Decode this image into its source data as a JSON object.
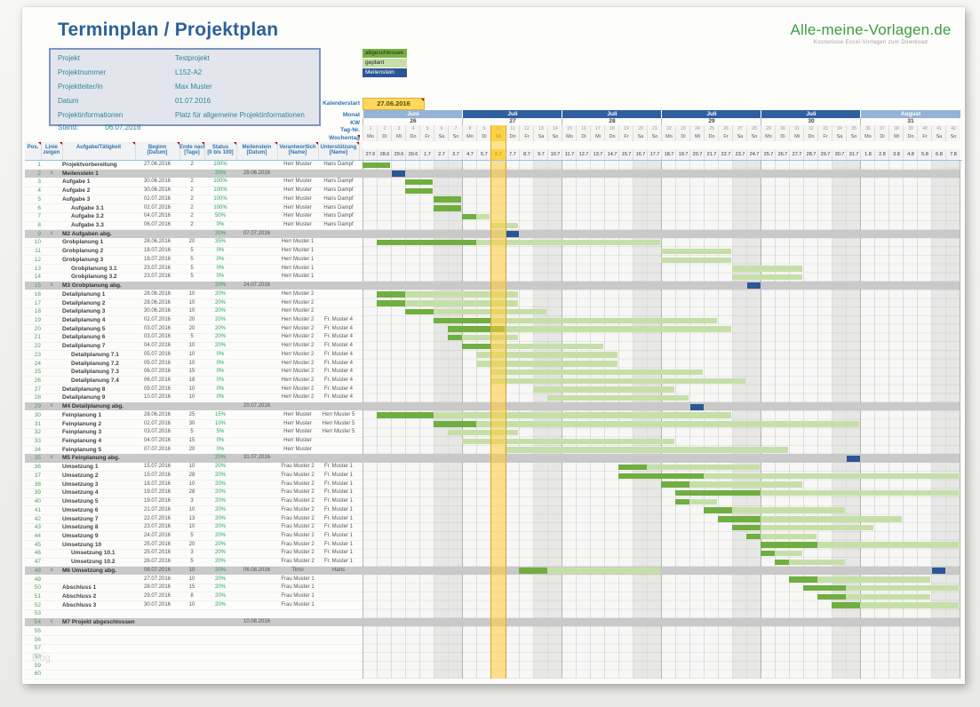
{
  "page": {
    "title": "Terminplan / Projektplan",
    "stand_label": "Stand:",
    "stand_value": "06.07.2016",
    "watermark": "blog"
  },
  "logo": {
    "name": "Alle-meine-Vorlagen.de",
    "tagline": "Kostenlose Excel-Vorlagen zum Download"
  },
  "info_box": {
    "rows": [
      {
        "label": "Projekt",
        "value": "Testprojekt"
      },
      {
        "label": "Projektnummer",
        "value": "L152-A2"
      },
      {
        "label": "Projektleiter/in",
        "value": "Max Muster"
      },
      {
        "label": "Datum",
        "value": "01.07.2016"
      },
      {
        "label": "Projektinformationen",
        "value": "Platz für allgemeine Projektinformationen"
      }
    ]
  },
  "legend": [
    {
      "label": "abgeschlossen",
      "color": "#76b041",
      "text": "#222222"
    },
    {
      "label": "geplant",
      "color": "#c6dfa8",
      "text": "#222222"
    },
    {
      "label": "Meilenstein",
      "color": "#2b5694",
      "text": "#ffffff"
    }
  ],
  "colors": {
    "done_bar": "#6fae3f",
    "planned_bar": "#c6dfa8",
    "milestone": "#2b5694",
    "today_fill": "rgba(253,205,55,0.55)",
    "today_border": "#dda535",
    "today_cell": "#fcd44f",
    "weekend": "#e7e7e5",
    "weekday": "#f7f7f6",
    "band_gray": "#c9c9c9",
    "month_juni": "#95b3d7",
    "month_juli": "#2f5f9e",
    "month_august": "#95b3d7"
  },
  "calendar": {
    "start_label": "Kalenderstart",
    "start_value": "27.06.2016",
    "labels": {
      "monat": "Monat",
      "kw": "KW",
      "tag": "Tag-Nr.",
      "wochentag": "Wochentag"
    },
    "months": [
      {
        "label": "Juni",
        "weeks": 1,
        "color_key": "month_juni"
      },
      {
        "label": "Juli",
        "weeks": 1,
        "color_key": "month_juli"
      },
      {
        "label": "Juli",
        "weeks": 1,
        "color_key": "month_juli"
      },
      {
        "label": "Juli",
        "weeks": 1,
        "color_key": "month_juli"
      },
      {
        "label": "Juli",
        "weeks": 1,
        "color_key": "month_juli"
      },
      {
        "label": "August",
        "weeks": 1,
        "color_key": "month_august"
      }
    ],
    "weeks": [
      "26",
      "27",
      "28",
      "29",
      "30",
      "31"
    ],
    "weekdays": [
      "Mo",
      "Di",
      "Mi",
      "Do",
      "Fr",
      "Sa",
      "So"
    ],
    "dates": [
      "27.6",
      "28.6",
      "29.6",
      "30.6",
      "1.7",
      "2.7",
      "3.7",
      "4.7",
      "5.7",
      "6.7",
      "7.7",
      "8.7",
      "9.7",
      "10.7",
      "11.7",
      "12.7",
      "13.7",
      "14.7",
      "15.7",
      "16.7",
      "17.7",
      "18.7",
      "19.7",
      "20.7",
      "21.7",
      "22.7",
      "23.7",
      "24.7",
      "25.7",
      "26.7",
      "27.7",
      "28.7",
      "29.7",
      "30.7",
      "31.7",
      "1.8",
      "2.8",
      "3.8",
      "4.8",
      "5.8",
      "6.8",
      "7.8"
    ],
    "today_day": 10,
    "num_days": 42
  },
  "table": {
    "headers": [
      {
        "l1": "Pos.",
        "l2": ""
      },
      {
        "l1": "Linie",
        "l2": "zeigen"
      },
      {
        "l1": "Aufgabe/Tätigkeit",
        "l2": ""
      },
      {
        "l1": "Beginn",
        "l2": "[Datum]"
      },
      {
        "l1": "Ende nach",
        "l2": "[Tage]"
      },
      {
        "l1": "Status",
        "l2": "[0 bis 100]"
      },
      {
        "l1": "Meilenstein",
        "l2": "[Datum]"
      },
      {
        "l1": "Verantwortlich",
        "l2": "[Name]"
      },
      {
        "l1": "Unterstützung",
        "l2": "[Name]"
      }
    ]
  },
  "rows": [
    {
      "pos": "1",
      "type": "task",
      "name": "Projektvorbereitung",
      "beginn": "27.06.2016",
      "dauer": "2",
      "status": "100%",
      "verantwortlich": "Herr Muster",
      "unterstuetzung": "Hans Dampf"
    },
    {
      "pos": "2",
      "type": "milestone",
      "linie": "x",
      "name": "Meilenstein 1",
      "status": "20%",
      "meilenstein": "29.06.2016"
    },
    {
      "pos": "3",
      "type": "task",
      "name": "Aufgabe 1",
      "beginn": "30.06.2016",
      "dauer": "2",
      "status": "100%",
      "verantwortlich": "Herr Muster",
      "unterstuetzung": "Hans Dampf"
    },
    {
      "pos": "4",
      "type": "task",
      "name": "Aufgabe 2",
      "beginn": "30.06.2016",
      "dauer": "2",
      "status": "100%",
      "verantwortlich": "Herr Muster",
      "unterstuetzung": "Hans Dampf"
    },
    {
      "pos": "5",
      "type": "task",
      "name": "Aufgabe 3",
      "beginn": "02.07.2016",
      "dauer": "2",
      "status": "100%",
      "verantwortlich": "Herr Muster",
      "unterstuetzung": "Hans Dampf"
    },
    {
      "pos": "6",
      "type": "task",
      "indent": 1,
      "name": "Aufgabe 3.1",
      "beginn": "02.07.2016",
      "dauer": "2",
      "status": "100%",
      "verantwortlich": "Herr Muster",
      "unterstuetzung": "Hans Dampf"
    },
    {
      "pos": "7",
      "type": "task",
      "indent": 1,
      "name": "Aufgabe 3.2",
      "beginn": "04.07.2016",
      "dauer": "2",
      "status": "50%",
      "verantwortlich": "Herr Muster",
      "unterstuetzung": "Hans Dampf"
    },
    {
      "pos": "8",
      "type": "task",
      "indent": 1,
      "name": "Aufgabe 3.3",
      "beginn": "06.07.2016",
      "dauer": "2",
      "status": "0%",
      "verantwortlich": "Herr Muster",
      "unterstuetzung": "Hans Dampf"
    },
    {
      "pos": "9",
      "type": "milestone",
      "linie": "x",
      "name": "M2 Aufgaben abg.",
      "status": "20%",
      "meilenstein": "07.07.2016"
    },
    {
      "pos": "10",
      "type": "task",
      "name": "Grobplanung 1",
      "beginn": "28.06.2016",
      "dauer": "20",
      "status": "35%",
      "verantwortlich": "Herr Muster 1"
    },
    {
      "pos": "11",
      "type": "task",
      "name": "Grobplanung 2",
      "beginn": "18.07.2016",
      "dauer": "5",
      "status": "0%",
      "verantwortlich": "Herr Muster 1"
    },
    {
      "pos": "12",
      "type": "task",
      "name": "Grobplanung 3",
      "beginn": "18.07.2016",
      "dauer": "5",
      "status": "0%",
      "verantwortlich": "Herr Muster 1"
    },
    {
      "pos": "13",
      "type": "task",
      "indent": 1,
      "name": "Grobplanung 3.1",
      "beginn": "23.07.2016",
      "dauer": "5",
      "status": "0%",
      "verantwortlich": "Herr Muster 1"
    },
    {
      "pos": "14",
      "type": "task",
      "indent": 1,
      "name": "Grobplanung 3.2",
      "beginn": "23.07.2016",
      "dauer": "5",
      "status": "0%",
      "verantwortlich": "Herr Muster 1"
    },
    {
      "pos": "15",
      "type": "milestone",
      "linie": "x",
      "name": "M3 Grobplanung abg.",
      "status": "20%",
      "meilenstein": "24.07.2016"
    },
    {
      "pos": "16",
      "type": "task",
      "name": "Detailplanung 1",
      "beginn": "28.06.2016",
      "dauer": "10",
      "status": "20%",
      "verantwortlich": "Herr Muster 2"
    },
    {
      "pos": "17",
      "type": "task",
      "name": "Detailplanung 2",
      "beginn": "28.06.2016",
      "dauer": "10",
      "status": "20%",
      "verantwortlich": "Herr Muster 2"
    },
    {
      "pos": "18",
      "type": "task",
      "name": "Detailplanung 3",
      "beginn": "30.06.2016",
      "dauer": "10",
      "status": "20%",
      "verantwortlich": "Herr Muster 2"
    },
    {
      "pos": "19",
      "type": "task",
      "name": "Detailplanung 4",
      "beginn": "02.07.2016",
      "dauer": "20",
      "status": "20%",
      "verantwortlich": "Herr Muster 2",
      "unterstuetzung": "Fr. Muster 4"
    },
    {
      "pos": "20",
      "type": "task",
      "name": "Detailplanung 5",
      "beginn": "03.07.2016",
      "dauer": "20",
      "status": "20%",
      "verantwortlich": "Herr Muster 2",
      "unterstuetzung": "Fr. Muster 4"
    },
    {
      "pos": "21",
      "type": "task",
      "name": "Detailplanung 6",
      "beginn": "03.07.2016",
      "dauer": "5",
      "status": "20%",
      "verantwortlich": "Herr Muster 2",
      "unterstuetzung": "Fr. Muster 4"
    },
    {
      "pos": "22",
      "type": "task",
      "name": "Detailplanung 7",
      "beginn": "04.07.2016",
      "dauer": "10",
      "status": "20%",
      "verantwortlich": "Herr Muster 2",
      "unterstuetzung": "Fr. Muster 4"
    },
    {
      "pos": "23",
      "type": "task",
      "indent": 1,
      "name": "Detailplanung 7.1",
      "beginn": "05.07.2016",
      "dauer": "10",
      "status": "0%",
      "verantwortlich": "Herr Muster 2",
      "unterstuetzung": "Fr. Muster 4"
    },
    {
      "pos": "24",
      "type": "task",
      "indent": 1,
      "name": "Detailplanung 7.2",
      "beginn": "05.07.2016",
      "dauer": "10",
      "status": "0%",
      "verantwortlich": "Herr Muster 2",
      "unterstuetzung": "Fr. Muster 4"
    },
    {
      "pos": "25",
      "type": "task",
      "indent": 1,
      "name": "Detailplanung 7.3",
      "beginn": "06.07.2016",
      "dauer": "15",
      "status": "0%",
      "verantwortlich": "Herr Muster 2",
      "unterstuetzung": "Fr. Muster 4"
    },
    {
      "pos": "26",
      "type": "task",
      "indent": 1,
      "name": "Detailplanung 7.4",
      "beginn": "06.07.2016",
      "dauer": "18",
      "status": "0%",
      "verantwortlich": "Herr Muster 2",
      "unterstuetzung": "Fr. Muster 4"
    },
    {
      "pos": "27",
      "type": "task",
      "name": "Detailplanung 8",
      "beginn": "09.07.2016",
      "dauer": "10",
      "status": "0%",
      "verantwortlich": "Herr Muster 2",
      "unterstuetzung": "Fr. Muster 4"
    },
    {
      "pos": "28",
      "type": "task",
      "name": "Detailplanung 9",
      "beginn": "10.07.2016",
      "dauer": "10",
      "status": "0%",
      "verantwortlich": "Herr Muster 2",
      "unterstuetzung": "Fr. Muster 4"
    },
    {
      "pos": "29",
      "type": "milestone",
      "linie": "x",
      "name": "M4 Detailplanung abg.",
      "meilenstein": "20.07.2016"
    },
    {
      "pos": "30",
      "type": "task",
      "name": "Feinplanung 1",
      "beginn": "28.06.2016",
      "dauer": "25",
      "status": "15%",
      "verantwortlich": "Herr Muster",
      "unterstuetzung": "Herr Muster 5"
    },
    {
      "pos": "31",
      "type": "task",
      "name": "Feinplanung 2",
      "beginn": "02.07.2016",
      "dauer": "30",
      "status": "10%",
      "verantwortlich": "Herr Muster",
      "unterstuetzung": "Herr Muster 5"
    },
    {
      "pos": "32",
      "type": "task",
      "name": "Feinplanung 3",
      "beginn": "03.07.2016",
      "dauer": "5",
      "status": "5%",
      "verantwortlich": "Herr Muster",
      "unterstuetzung": "Herr Muster 5"
    },
    {
      "pos": "33",
      "type": "task",
      "name": "Feinplanung 4",
      "beginn": "04.07.2016",
      "dauer": "15",
      "status": "0%",
      "verantwortlich": "Herr Muster"
    },
    {
      "pos": "34",
      "type": "task",
      "name": "Feinplanung 5",
      "beginn": "07.07.2016",
      "dauer": "20",
      "status": "0%",
      "verantwortlich": "Herr Muster"
    },
    {
      "pos": "35",
      "type": "milestone",
      "linie": "x",
      "name": "M5 Feinplanung abg.",
      "status": "20%",
      "meilenstein": "31.07.2016"
    },
    {
      "pos": "36",
      "type": "task",
      "name": "Umsetzung 1",
      "beginn": "15.07.2016",
      "dauer": "10",
      "status": "20%",
      "verantwortlich": "Frau Muster 2",
      "unterstuetzung": "Fr. Muster 1"
    },
    {
      "pos": "37",
      "type": "task",
      "name": "Umsetzung 2",
      "beginn": "15.07.2016",
      "dauer": "28",
      "status": "20%",
      "verantwortlich": "Frau Muster 2",
      "unterstuetzung": "Fr. Muster 1"
    },
    {
      "pos": "38",
      "type": "task",
      "name": "Umsetzung 3",
      "beginn": "18.07.2016",
      "dauer": "10",
      "status": "20%",
      "verantwortlich": "Frau Muster 2",
      "unterstuetzung": "Fr. Muster 1"
    },
    {
      "pos": "39",
      "type": "task",
      "name": "Umsetzung 4",
      "beginn": "19.07.2016",
      "dauer": "28",
      "status": "20%",
      "verantwortlich": "Frau Muster 2",
      "unterstuetzung": "Fr. Muster 1"
    },
    {
      "pos": "40",
      "type": "task",
      "name": "Umsetzung 5",
      "beginn": "19.07.2016",
      "dauer": "3",
      "status": "20%",
      "verantwortlich": "Frau Muster 2",
      "unterstuetzung": "Fr. Muster 1"
    },
    {
      "pos": "41",
      "type": "task",
      "name": "Umsetzung 6",
      "beginn": "21.07.2016",
      "dauer": "10",
      "status": "20%",
      "verantwortlich": "Frau Muster 2",
      "unterstuetzung": "Fr. Muster 1"
    },
    {
      "pos": "42",
      "type": "task",
      "name": "Umsetzung 7",
      "beginn": "22.07.2016",
      "dauer": "13",
      "status": "20%",
      "verantwortlich": "Frau Muster 2",
      "unterstuetzung": "Fr. Muster 1"
    },
    {
      "pos": "43",
      "type": "task",
      "name": "Umsetzung 8",
      "beginn": "23.07.2016",
      "dauer": "10",
      "status": "20%",
      "verantwortlich": "Frau Muster 2",
      "unterstuetzung": "Fr. Muster 1"
    },
    {
      "pos": "44",
      "type": "task",
      "name": "Umsetzung 9",
      "beginn": "24.07.2016",
      "dauer": "5",
      "status": "20%",
      "verantwortlich": "Frau Muster 2",
      "unterstuetzung": "Fr. Muster 1"
    },
    {
      "pos": "45",
      "type": "task",
      "name": "Umsetzung 10",
      "beginn": "25.07.2016",
      "dauer": "20",
      "status": "20%",
      "verantwortlich": "Frau Muster 2",
      "unterstuetzung": "Fr. Muster 1"
    },
    {
      "pos": "46",
      "type": "task",
      "indent": 1,
      "name": "Umsetzung 10.1",
      "beginn": "25.07.2016",
      "dauer": "3",
      "status": "20%",
      "verantwortlich": "Frau Muster 2",
      "unterstuetzung": "Fr. Muster 1"
    },
    {
      "pos": "47",
      "type": "task",
      "indent": 1,
      "name": "Umsetzung 10.2",
      "beginn": "26.07.2016",
      "dauer": "5",
      "status": "20%",
      "verantwortlich": "Frau Muster 2",
      "unterstuetzung": "Fr. Muster 1"
    },
    {
      "pos": "48",
      "type": "milestone",
      "linie": "x",
      "name": "M6 Umsetzung abg.",
      "beginn": "08.07.2016",
      "dauer": "10",
      "status": "20%",
      "meilenstein": "06.08.2016",
      "verantwortlich": "Timo",
      "unterstuetzung": "Hans"
    },
    {
      "pos": "49",
      "type": "task",
      "name": "",
      "beginn": "27.07.2016",
      "dauer": "10",
      "status": "20%",
      "verantwortlich": "Frau Muster 1"
    },
    {
      "pos": "50",
      "type": "task",
      "name": "Abschluss 1",
      "beginn": "28.07.2016",
      "dauer": "15",
      "status": "20%",
      "verantwortlich": "Frau Muster 1"
    },
    {
      "pos": "51",
      "type": "task",
      "name": "Abschluss 2",
      "beginn": "29.07.2016",
      "dauer": "8",
      "status": "20%",
      "verantwortlich": "Frau Muster 1"
    },
    {
      "pos": "52",
      "type": "task",
      "name": "Abschluss 3",
      "beginn": "30.07.2016",
      "dauer": "10",
      "status": "20%",
      "verantwortlich": "Frau Muster 1"
    },
    {
      "pos": "53",
      "type": "empty"
    },
    {
      "pos": "54",
      "type": "milestone",
      "linie": "x",
      "name": "M7 Projekt abgeschlossen",
      "meilenstein": "10.08.2016"
    },
    {
      "pos": "55",
      "type": "empty"
    },
    {
      "pos": "56",
      "type": "empty"
    },
    {
      "pos": "57",
      "type": "empty"
    },
    {
      "pos": "58",
      "type": "empty"
    },
    {
      "pos": "59",
      "type": "empty"
    },
    {
      "pos": "60",
      "type": "empty"
    }
  ]
}
